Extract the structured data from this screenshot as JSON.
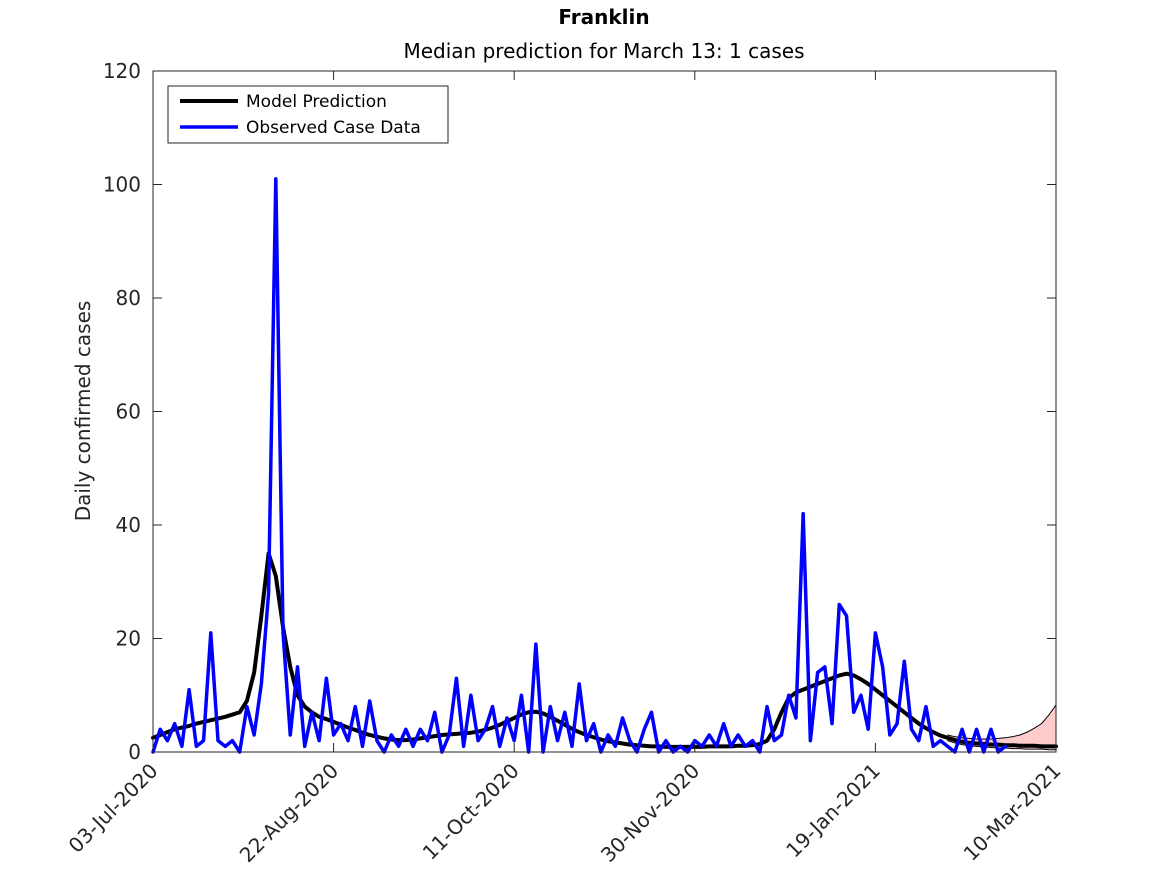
{
  "chart_data": {
    "type": "line",
    "title": "Franklin",
    "subtitle": "Median prediction for March 13: 1 cases",
    "y_label": "Daily confirmed cases",
    "x": [
      "2020-07-03",
      "2020-07-05",
      "2020-07-07",
      "2020-07-09",
      "2020-07-11",
      "2020-07-13",
      "2020-07-15",
      "2020-07-17",
      "2020-07-19",
      "2020-07-21",
      "2020-07-23",
      "2020-07-25",
      "2020-07-27",
      "2020-07-29",
      "2020-07-31",
      "2020-08-02",
      "2020-08-04",
      "2020-08-06",
      "2020-08-08",
      "2020-08-10",
      "2020-08-12",
      "2020-08-14",
      "2020-08-16",
      "2020-08-18",
      "2020-08-20",
      "2020-08-22",
      "2020-08-24",
      "2020-08-26",
      "2020-08-28",
      "2020-08-30",
      "2020-09-01",
      "2020-09-03",
      "2020-09-05",
      "2020-09-07",
      "2020-09-09",
      "2020-09-11",
      "2020-09-13",
      "2020-09-15",
      "2020-09-17",
      "2020-09-19",
      "2020-09-21",
      "2020-09-23",
      "2020-09-25",
      "2020-09-27",
      "2020-09-29",
      "2020-10-01",
      "2020-10-03",
      "2020-10-05",
      "2020-10-07",
      "2020-10-09",
      "2020-10-11",
      "2020-10-13",
      "2020-10-15",
      "2020-10-17",
      "2020-10-19",
      "2020-10-21",
      "2020-10-23",
      "2020-10-25",
      "2020-10-27",
      "2020-10-29",
      "2020-10-31",
      "2020-11-02",
      "2020-11-04",
      "2020-11-06",
      "2020-11-08",
      "2020-11-10",
      "2020-11-12",
      "2020-11-14",
      "2020-11-16",
      "2020-11-18",
      "2020-11-20",
      "2020-11-22",
      "2020-11-24",
      "2020-11-26",
      "2020-11-28",
      "2020-11-30",
      "2020-12-02",
      "2020-12-04",
      "2020-12-06",
      "2020-12-08",
      "2020-12-10",
      "2020-12-12",
      "2020-12-14",
      "2020-12-16",
      "2020-12-18",
      "2020-12-20",
      "2020-12-22",
      "2020-12-24",
      "2020-12-26",
      "2020-12-28",
      "2020-12-30",
      "2021-01-01",
      "2021-01-03",
      "2021-01-05",
      "2021-01-07",
      "2021-01-09",
      "2021-01-11",
      "2021-01-13",
      "2021-01-15",
      "2021-01-17",
      "2021-01-19",
      "2021-01-21",
      "2021-01-23",
      "2021-01-25",
      "2021-01-27",
      "2021-01-29",
      "2021-01-31",
      "2021-02-02",
      "2021-02-04",
      "2021-02-06",
      "2021-02-08",
      "2021-02-10",
      "2021-02-12",
      "2021-02-14",
      "2021-02-16",
      "2021-02-18",
      "2021-02-20",
      "2021-02-22",
      "2021-02-24",
      "2021-02-26",
      "2021-02-28",
      "2021-03-02",
      "2021-03-04",
      "2021-03-06",
      "2021-03-08",
      "2021-03-10"
    ],
    "band": {
      "color": "#ffcccc",
      "upper": [
        null,
        null,
        null,
        null,
        null,
        null,
        null,
        null,
        null,
        null,
        null,
        null,
        null,
        null,
        null,
        null,
        null,
        null,
        null,
        null,
        null,
        null,
        null,
        null,
        null,
        null,
        null,
        null,
        null,
        null,
        null,
        null,
        null,
        null,
        null,
        null,
        null,
        null,
        null,
        null,
        null,
        null,
        null,
        null,
        null,
        null,
        null,
        null,
        null,
        null,
        null,
        null,
        null,
        null,
        null,
        null,
        null,
        null,
        null,
        null,
        null,
        null,
        null,
        null,
        null,
        null,
        null,
        null,
        null,
        null,
        null,
        null,
        null,
        null,
        null,
        null,
        null,
        null,
        null,
        null,
        null,
        null,
        null,
        null,
        null,
        null,
        null,
        null,
        null,
        null,
        null,
        null,
        null,
        null,
        null,
        null,
        null,
        null,
        null,
        null,
        null,
        null,
        null,
        null,
        null,
        null,
        null,
        null,
        null,
        null,
        3.0,
        2.7,
        2.5,
        2.4,
        2.3,
        2.3,
        2.3,
        2.4,
        2.5,
        2.7,
        3.0,
        3.5,
        4.2,
        5.0,
        6.5,
        8.3
      ],
      "lower": [
        null,
        null,
        null,
        null,
        null,
        null,
        null,
        null,
        null,
        null,
        null,
        null,
        null,
        null,
        null,
        null,
        null,
        null,
        null,
        null,
        null,
        null,
        null,
        null,
        null,
        null,
        null,
        null,
        null,
        null,
        null,
        null,
        null,
        null,
        null,
        null,
        null,
        null,
        null,
        null,
        null,
        null,
        null,
        null,
        null,
        null,
        null,
        null,
        null,
        null,
        null,
        null,
        null,
        null,
        null,
        null,
        null,
        null,
        null,
        null,
        null,
        null,
        null,
        null,
        null,
        null,
        null,
        null,
        null,
        null,
        null,
        null,
        null,
        null,
        null,
        null,
        null,
        null,
        null,
        null,
        null,
        null,
        null,
        null,
        null,
        null,
        null,
        null,
        null,
        null,
        null,
        null,
        null,
        null,
        null,
        null,
        null,
        null,
        null,
        null,
        null,
        null,
        null,
        null,
        null,
        null,
        null,
        null,
        null,
        null,
        2.0,
        1.6,
        1.3,
        1.1,
        1.0,
        0.9,
        0.8,
        0.7,
        0.7,
        0.6,
        0.6,
        0.5,
        0.5,
        0.5,
        0.4,
        0.4
      ]
    },
    "series": [
      {
        "name": "Model Prediction",
        "color": "#000000",
        "width": 4,
        "values": [
          2.5,
          3,
          3.5,
          4,
          4.3,
          4.6,
          5,
          5.3,
          5.6,
          5.9,
          6.2,
          6.6,
          7,
          9,
          14,
          24,
          35,
          31,
          22,
          15,
          10,
          8,
          7,
          6.2,
          5.8,
          5.3,
          4.8,
          4.3,
          3.9,
          3.4,
          3,
          2.7,
          2.4,
          2.2,
          2.1,
          2.1,
          2.2,
          2.4,
          2.6,
          2.8,
          3,
          3.1,
          3.2,
          3.3,
          3.4,
          3.6,
          3.9,
          4.3,
          4.8,
          5.4,
          6,
          6.6,
          7,
          7.1,
          6.8,
          6.2,
          5.5,
          4.8,
          4.1,
          3.5,
          3,
          2.6,
          2.2,
          1.9,
          1.7,
          1.5,
          1.3,
          1.2,
          1.1,
          1,
          1,
          0.9,
          0.9,
          0.9,
          0.9,
          0.9,
          0.9,
          1,
          1,
          1,
          1,
          1.1,
          1.1,
          1.2,
          1.4,
          2,
          4,
          7,
          9.5,
          10.5,
          11,
          11.5,
          12,
          12.5,
          13,
          13.5,
          13.8,
          13.5,
          12.8,
          12,
          11,
          10,
          9,
          8,
          7,
          6,
          5,
          4.2,
          3.5,
          2.9,
          2.5,
          2.1,
          1.8,
          1.6,
          1.5,
          1.4,
          1.3,
          1.3,
          1.2,
          1.2,
          1.1,
          1.1,
          1.1,
          1,
          1,
          1
        ]
      },
      {
        "name": "Observed Case Data",
        "color": "#0000ff",
        "width": 3.5,
        "values": [
          0,
          4,
          2,
          5,
          1,
          11,
          1,
          2,
          21,
          2,
          1,
          2,
          0,
          8,
          3,
          12,
          28,
          101,
          21,
          3,
          15,
          1,
          7,
          2,
          13,
          3,
          5,
          2,
          8,
          1,
          9,
          2,
          0,
          3,
          1,
          4,
          1,
          4,
          2,
          7,
          0,
          3,
          13,
          1,
          10,
          2,
          4,
          8,
          1,
          6,
          2,
          10,
          0,
          19,
          0,
          8,
          2,
          7,
          1,
          12,
          2,
          5,
          0,
          3,
          1,
          6,
          2,
          0,
          4,
          7,
          0,
          2,
          0,
          1,
          0,
          2,
          1,
          3,
          1,
          5,
          1,
          3,
          1,
          2,
          0,
          8,
          2,
          3,
          10,
          6,
          42,
          2,
          14,
          15,
          5,
          26,
          24,
          7,
          10,
          4,
          21,
          15,
          3,
          5,
          16,
          4,
          2,
          8,
          1,
          2,
          1,
          0,
          4,
          0,
          4,
          0,
          4,
          0,
          1,
          null,
          null,
          null,
          null,
          null,
          null,
          null
        ]
      }
    ],
    "xlim": [
      "2020-07-03",
      "2021-03-10"
    ],
    "xticks": [
      {
        "value": "2020-07-03",
        "label": "03-Jul-2020"
      },
      {
        "value": "2020-08-22",
        "label": "22-Aug-2020"
      },
      {
        "value": "2020-10-11",
        "label": "11-Oct-2020"
      },
      {
        "value": "2020-11-30",
        "label": "30-Nov-2020"
      },
      {
        "value": "2021-01-19",
        "label": "19-Jan-2021"
      },
      {
        "value": "2021-03-10",
        "label": "10-Mar-2021"
      }
    ],
    "ylim": [
      0,
      120
    ],
    "yticks": [
      0,
      20,
      40,
      60,
      80,
      100,
      120
    ],
    "grid": false,
    "legend": "upper-left"
  }
}
